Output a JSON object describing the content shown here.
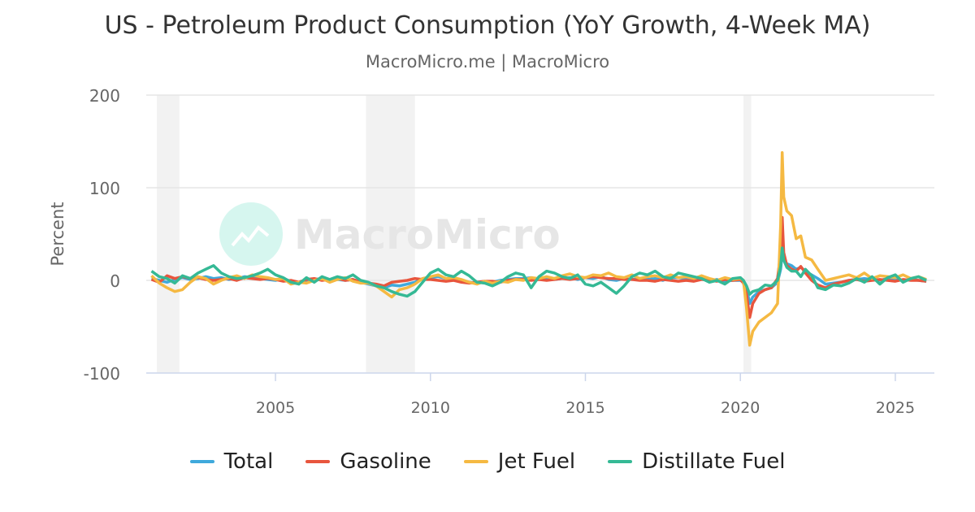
{
  "chart_data": {
    "type": "line",
    "title": "US - Petroleum Product Consumption (YoY Growth, 4-Week MA)",
    "subtitle": "MacroMicro.me | MacroMicro",
    "watermark": "MacroMicro",
    "ylabel": "Percent",
    "xlabel": "",
    "ylim": [
      -100,
      200
    ],
    "yticks": [
      -100,
      0,
      100,
      200
    ],
    "xlim": [
      2000.83,
      2026.26
    ],
    "xticks": [
      2005,
      2010,
      2015,
      2020,
      2025
    ],
    "grid": true,
    "legend_position": "bottom",
    "recessions": [
      [
        2001.17,
        2001.9
      ],
      [
        2007.92,
        2009.5
      ],
      [
        2020.1,
        2020.35
      ]
    ],
    "x": [
      2001,
      2001.25,
      2001.5,
      2001.75,
      2002,
      2002.25,
      2002.5,
      2002.75,
      2003,
      2003.25,
      2003.5,
      2003.75,
      2004,
      2004.25,
      2004.5,
      2004.75,
      2005,
      2005.25,
      2005.5,
      2005.75,
      2006,
      2006.25,
      2006.5,
      2006.75,
      2007,
      2007.25,
      2007.5,
      2007.75,
      2008,
      2008.25,
      2008.5,
      2008.75,
      2009,
      2009.25,
      2009.5,
      2009.75,
      2010,
      2010.25,
      2010.5,
      2010.75,
      2011,
      2011.25,
      2011.5,
      2011.75,
      2012,
      2012.25,
      2012.5,
      2012.75,
      2013,
      2013.25,
      2013.5,
      2013.75,
      2014,
      2014.25,
      2014.5,
      2014.75,
      2015,
      2015.25,
      2015.5,
      2015.75,
      2016,
      2016.25,
      2016.5,
      2016.75,
      2017,
      2017.25,
      2017.5,
      2017.75,
      2018,
      2018.25,
      2018.5,
      2018.75,
      2019,
      2019.25,
      2019.5,
      2019.75,
      2020,
      2020.1,
      2020.2,
      2020.3,
      2020.4,
      2020.6,
      2020.8,
      2021,
      2021.2,
      2021.3,
      2021.35,
      2021.4,
      2021.5,
      2021.65,
      2021.8,
      2021.95,
      2022.1,
      2022.3,
      2022.5,
      2022.75,
      2023,
      2023.25,
      2023.5,
      2023.75,
      2024,
      2024.25,
      2024.5,
      2024.75,
      2025,
      2025.25,
      2025.5,
      2025.75,
      2026
    ],
    "series": [
      {
        "name": "Total",
        "color": "#3fa9dc",
        "values": [
          2,
          0,
          -2,
          1,
          3,
          1,
          2,
          4,
          2,
          3,
          1,
          2,
          4,
          3,
          2,
          1,
          0,
          2,
          -1,
          -2,
          0,
          1,
          2,
          -1,
          1,
          0,
          1,
          -2,
          -4,
          -6,
          -8,
          -5,
          -6,
          -4,
          -2,
          2,
          3,
          4,
          2,
          1,
          -1,
          -2,
          -3,
          -1,
          -2,
          0,
          1,
          2,
          2,
          3,
          1,
          2,
          1,
          2,
          3,
          1,
          3,
          2,
          4,
          1,
          0,
          2,
          1,
          2,
          1,
          2,
          0,
          3,
          3,
          2,
          1,
          2,
          0,
          1,
          -1,
          0,
          0,
          -2,
          -8,
          -25,
          -18,
          -12,
          -10,
          -8,
          -2,
          12,
          28,
          22,
          18,
          16,
          12,
          14,
          10,
          6,
          2,
          -4,
          -3,
          -2,
          0,
          1,
          2,
          1,
          0,
          2,
          1,
          0,
          1,
          0,
          -1
        ]
      },
      {
        "name": "Gasoline",
        "color": "#e8553d",
        "values": [
          1,
          -2,
          5,
          2,
          4,
          2,
          3,
          1,
          0,
          1,
          2,
          0,
          3,
          2,
          1,
          2,
          1,
          -1,
          0,
          -2,
          1,
          2,
          0,
          1,
          2,
          0,
          1,
          -2,
          -3,
          -4,
          -6,
          -2,
          -1,
          0,
          2,
          1,
          1,
          0,
          -1,
          0,
          -2,
          -3,
          -2,
          -1,
          -1,
          -2,
          0,
          1,
          1,
          0,
          1,
          0,
          1,
          2,
          1,
          2,
          3,
          4,
          3,
          2,
          2,
          1,
          1,
          0,
          0,
          -1,
          1,
          0,
          -1,
          0,
          -1,
          1,
          0,
          -1,
          1,
          0,
          1,
          -3,
          -15,
          -40,
          -25,
          -14,
          -10,
          -8,
          2,
          30,
          68,
          30,
          16,
          12,
          10,
          15,
          8,
          0,
          -5,
          -8,
          -4,
          -2,
          0,
          1,
          -1,
          0,
          1,
          0,
          -1,
          1,
          0,
          0,
          -1
        ]
      },
      {
        "name": "Jet Fuel",
        "color": "#f5b942",
        "values": [
          5,
          -3,
          -8,
          -12,
          -10,
          -2,
          4,
          2,
          -4,
          0,
          3,
          5,
          2,
          6,
          4,
          3,
          1,
          2,
          -4,
          -2,
          -3,
          0,
          2,
          -2,
          1,
          3,
          -1,
          -3,
          -3,
          -6,
          -12,
          -18,
          -10,
          -8,
          -4,
          2,
          4,
          6,
          2,
          3,
          1,
          -2,
          -4,
          -1,
          -3,
          -1,
          -2,
          1,
          0,
          3,
          2,
          4,
          2,
          5,
          7,
          4,
          3,
          6,
          5,
          8,
          4,
          3,
          6,
          2,
          4,
          5,
          3,
          6,
          3,
          4,
          2,
          5,
          2,
          0,
          3,
          1,
          2,
          0,
          -30,
          -70,
          -55,
          -45,
          -40,
          -35,
          -25,
          60,
          138,
          90,
          75,
          70,
          45,
          48,
          25,
          22,
          12,
          0,
          2,
          4,
          6,
          3,
          8,
          2,
          5,
          4,
          3,
          6,
          2,
          4,
          1
        ]
      },
      {
        "name": "Distillate Fuel",
        "color": "#35b995",
        "values": [
          10,
          4,
          2,
          -3,
          5,
          2,
          8,
          12,
          16,
          8,
          4,
          2,
          3,
          5,
          8,
          12,
          6,
          3,
          -2,
          -4,
          3,
          -2,
          4,
          1,
          4,
          2,
          6,
          0,
          -2,
          -6,
          -8,
          -12,
          -15,
          -17,
          -12,
          -2,
          8,
          12,
          6,
          4,
          10,
          5,
          -2,
          -3,
          -6,
          -2,
          4,
          8,
          6,
          -8,
          4,
          10,
          8,
          4,
          2,
          6,
          -4,
          -6,
          -2,
          -8,
          -14,
          -6,
          4,
          8,
          6,
          10,
          4,
          2,
          8,
          6,
          4,
          2,
          -2,
          0,
          -4,
          2,
          3,
          0,
          -6,
          -15,
          -12,
          -10,
          -5,
          -6,
          0,
          15,
          35,
          22,
          14,
          10,
          10,
          4,
          12,
          5,
          -8,
          -10,
          -5,
          -6,
          -3,
          2,
          -2,
          4,
          -4,
          3,
          6,
          -2,
          2,
          4,
          0
        ]
      }
    ]
  }
}
